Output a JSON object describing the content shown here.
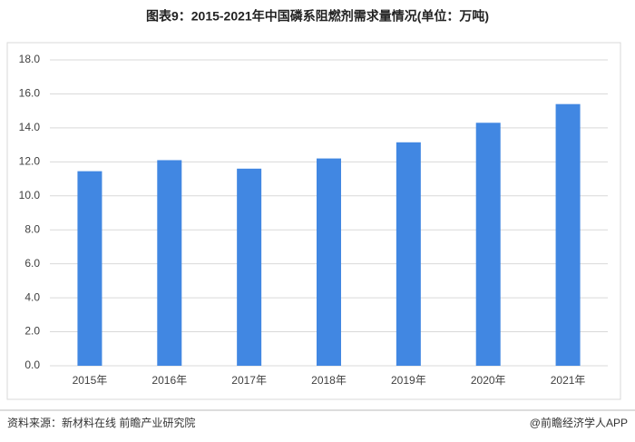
{
  "chart_data": {
    "type": "bar",
    "title": "图表9：2015-2021年中国磷系阻燃剂需求量情况(单位：万吨)",
    "categories": [
      "2015年",
      "2016年",
      "2017年",
      "2018年",
      "2019年",
      "2020年",
      "2021年"
    ],
    "values": [
      11.45,
      12.1,
      11.6,
      12.2,
      13.15,
      14.3,
      15.4
    ],
    "color": "#4187e2",
    "ylim": [
      0,
      18
    ],
    "yticks": [
      {
        "value": 0,
        "label": "0.0"
      },
      {
        "value": 2,
        "label": "2.0"
      },
      {
        "value": 4,
        "label": "4.0"
      },
      {
        "value": 6,
        "label": "6.0"
      },
      {
        "value": 8,
        "label": "8.0"
      },
      {
        "value": 10,
        "label": "10.0"
      },
      {
        "value": 12,
        "label": "12.0"
      },
      {
        "value": 14,
        "label": "14.0"
      },
      {
        "value": 16,
        "label": "16.0"
      },
      {
        "value": 18,
        "label": "18.0"
      }
    ],
    "grid": true
  },
  "footer": {
    "source": "资料来源：新材料在线 前瞻产业研究院",
    "brand": "@前瞻经济学人APP"
  }
}
